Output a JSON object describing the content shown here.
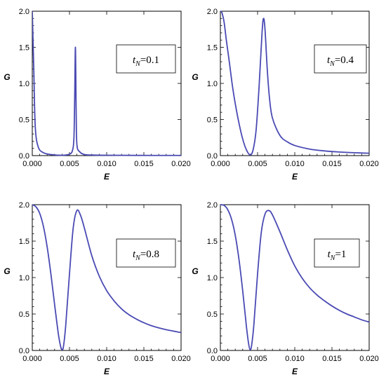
{
  "chart_data": [
    {
      "type": "line",
      "panel": "top-left",
      "xlabel": "E",
      "ylabel": "G",
      "xlim": [
        0,
        0.02
      ],
      "ylim": [
        0,
        2
      ],
      "xticks": [
        "0.000",
        "0.005",
        "0.010",
        "0.015",
        "0.020"
      ],
      "yticks": [
        "0.0",
        "0.5",
        "1.0",
        "1.5",
        "2.0"
      ],
      "legend": {
        "var": "t",
        "sub": "N",
        "value": "=0.1"
      },
      "series": [
        {
          "color": "#4a4ab4",
          "x": [
            0,
            0.0002,
            0.0004,
            0.0008,
            0.0015,
            0.0025,
            0.004,
            0.005,
            0.0054,
            0.0056,
            0.0057,
            0.0058,
            0.0059,
            0.006,
            0.0064,
            0.007,
            0.008,
            0.01,
            0.014,
            0.02
          ],
          "y": [
            2.0,
            1.2,
            0.4,
            0.12,
            0.04,
            0.015,
            0.005,
            0.02,
            0.07,
            0.25,
            0.8,
            1.5,
            0.6,
            0.15,
            0.05,
            0.015,
            0.008,
            0.005,
            0.003,
            0.002
          ]
        }
      ]
    },
    {
      "type": "line",
      "panel": "top-right",
      "xlabel": "E",
      "ylabel": "G",
      "xlim": [
        0,
        0.02
      ],
      "ylim": [
        0,
        2
      ],
      "xticks": [
        "0.000",
        "0.005",
        "0.010",
        "0.015",
        "0.020"
      ],
      "yticks": [
        "0.0",
        "0.5",
        "1.0",
        "1.5",
        "2.0"
      ],
      "legend": {
        "var": "t",
        "sub": "N",
        "value": "=0.4"
      },
      "series": [
        {
          "color": "#4a4ab4",
          "x": [
            0,
            0.0002,
            0.0005,
            0.0008,
            0.0012,
            0.0016,
            0.002,
            0.0025,
            0.003,
            0.0035,
            0.004,
            0.0044,
            0.0048,
            0.0052,
            0.0056,
            0.0058,
            0.006,
            0.0063,
            0.0066,
            0.007,
            0.008,
            0.009,
            0.01,
            0.012,
            0.014,
            0.016,
            0.018,
            0.02
          ],
          "y": [
            2.0,
            1.98,
            1.85,
            1.6,
            1.3,
            0.98,
            0.72,
            0.45,
            0.23,
            0.08,
            0.01,
            0.08,
            0.35,
            0.95,
            1.7,
            1.9,
            1.75,
            1.2,
            0.8,
            0.52,
            0.28,
            0.19,
            0.14,
            0.09,
            0.065,
            0.05,
            0.04,
            0.033
          ]
        }
      ]
    },
    {
      "type": "line",
      "panel": "bottom-left",
      "xlabel": "E",
      "ylabel": "G",
      "xlim": [
        0,
        0.02
      ],
      "ylim": [
        0,
        2
      ],
      "xticks": [
        "0.000",
        "0.005",
        "0.010",
        "0.015",
        "0.020"
      ],
      "yticks": [
        "0.0",
        "0.5",
        "1.0",
        "1.5",
        "2.0"
      ],
      "legend": {
        "var": "t",
        "sub": "N",
        "value": "=0.8"
      },
      "series": [
        {
          "color": "#4a4ab4",
          "x": [
            0,
            0.0005,
            0.001,
            0.0015,
            0.002,
            0.0025,
            0.003,
            0.0035,
            0.0038,
            0.004,
            0.0042,
            0.0045,
            0.005,
            0.0055,
            0.006,
            0.0065,
            0.007,
            0.008,
            0.009,
            0.01,
            0.011,
            0.012,
            0.013,
            0.014,
            0.015,
            0.016,
            0.017,
            0.018,
            0.019,
            0.02
          ],
          "y": [
            2.0,
            1.97,
            1.88,
            1.7,
            1.42,
            1.05,
            0.63,
            0.23,
            0.06,
            0.01,
            0.06,
            0.35,
            1.05,
            1.68,
            1.92,
            1.85,
            1.68,
            1.3,
            1.02,
            0.82,
            0.68,
            0.57,
            0.49,
            0.43,
            0.38,
            0.34,
            0.31,
            0.285,
            0.265,
            0.245
          ]
        }
      ]
    },
    {
      "type": "line",
      "panel": "bottom-right",
      "xlabel": "E",
      "ylabel": "G",
      "xlim": [
        0,
        0.02
      ],
      "ylim": [
        0,
        2
      ],
      "xticks": [
        "0.000",
        "0.005",
        "0.010",
        "0.015",
        "0.020"
      ],
      "yticks": [
        "0.0",
        "0.5",
        "1.0",
        "1.5",
        "2.0"
      ],
      "legend": {
        "var": "t",
        "sub": "N",
        "value": "=1"
      },
      "series": [
        {
          "color": "#4a4ab4",
          "x": [
            0,
            0.0005,
            0.001,
            0.0015,
            0.002,
            0.0025,
            0.003,
            0.0035,
            0.0038,
            0.004,
            0.0042,
            0.0045,
            0.005,
            0.0055,
            0.006,
            0.0065,
            0.007,
            0.008,
            0.009,
            0.01,
            0.011,
            0.012,
            0.013,
            0.014,
            0.015,
            0.016,
            0.017,
            0.018,
            0.019,
            0.02
          ],
          "y": [
            2.0,
            1.99,
            1.93,
            1.8,
            1.58,
            1.25,
            0.82,
            0.33,
            0.09,
            0.01,
            0.07,
            0.35,
            1.05,
            1.62,
            1.87,
            1.92,
            1.86,
            1.63,
            1.38,
            1.16,
            0.99,
            0.86,
            0.76,
            0.68,
            0.61,
            0.55,
            0.5,
            0.46,
            0.42,
            0.39
          ]
        }
      ]
    }
  ]
}
